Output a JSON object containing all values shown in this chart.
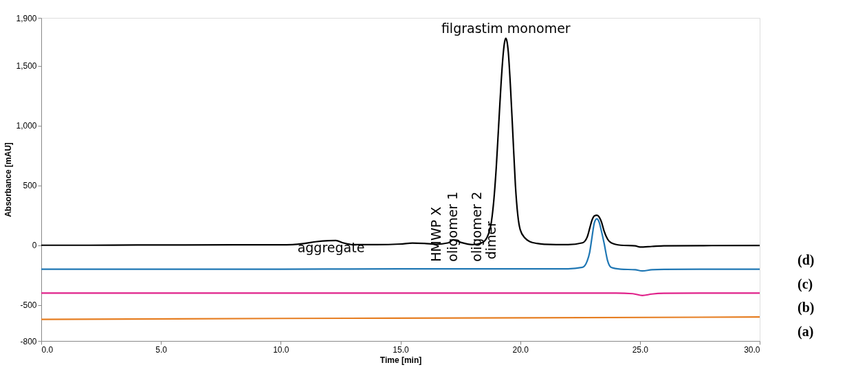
{
  "chart_data": {
    "type": "line",
    "xlabel": "Time [min]",
    "ylabel": "Absorbance [mAU]",
    "xlim": [
      0,
      30
    ],
    "ylim": [
      -800,
      1900
    ],
    "xticks": [
      {
        "value": 0,
        "label": "0.0"
      },
      {
        "value": 5,
        "label": "5.0"
      },
      {
        "value": 10,
        "label": "10.0"
      },
      {
        "value": 15,
        "label": "15.0"
      },
      {
        "value": 20,
        "label": "20.0"
      },
      {
        "value": 25,
        "label": "25.0"
      },
      {
        "value": 30,
        "label": "30.0"
      }
    ],
    "yticks": [
      -800,
      -500,
      0,
      500,
      {
        "value": 1000,
        "label": "1,000"
      },
      {
        "value": 1500,
        "label": "1,500"
      },
      {
        "value": 1900,
        "label": "1,900"
      }
    ],
    "grid": false,
    "legend": false,
    "marker": "none",
    "line_style": "solid",
    "series": [
      {
        "name": "(d)",
        "color": "#000000",
        "x": [
          0,
          2,
          4,
          6,
          8,
          10,
          10.5,
          11,
          11.5,
          12,
          12.3,
          12.6,
          13,
          14,
          15,
          15.5,
          16,
          16.5,
          17,
          17.2,
          17.5,
          18,
          18.4,
          18.6,
          18.8,
          18.9,
          19.0,
          19.1,
          19.2,
          19.3,
          19.35,
          19.4,
          19.45,
          19.5,
          19.6,
          19.7,
          19.8,
          19.9,
          20.0,
          20.2,
          20.4,
          20.7,
          21,
          22,
          22.6,
          22.8,
          22.9,
          23.0,
          23.1,
          23.2,
          23.3,
          23.4,
          23.5,
          23.65,
          23.8,
          24.2,
          24.8,
          25.0,
          25.5,
          26,
          28,
          30
        ],
        "values": [
          0,
          0,
          2,
          2,
          3,
          3,
          5,
          15,
          30,
          38,
          40,
          20,
          5,
          5,
          10,
          18,
          15,
          8,
          20,
          45,
          25,
          5,
          20,
          60,
          200,
          380,
          650,
          1000,
          1350,
          1620,
          1700,
          1730,
          1700,
          1620,
          1300,
          900,
          500,
          250,
          130,
          60,
          30,
          15,
          8,
          5,
          20,
          70,
          140,
          210,
          245,
          250,
          235,
          190,
          120,
          50,
          20,
          0,
          -5,
          -15,
          -10,
          -5,
          -3,
          -2
        ]
      },
      {
        "name": "(c)",
        "color": "#1f77b4",
        "x": [
          0,
          5,
          10,
          15,
          20,
          21,
          22,
          22.6,
          22.8,
          22.9,
          23.0,
          23.1,
          23.2,
          23.3,
          23.4,
          23.5,
          23.65,
          23.8,
          24.2,
          24.8,
          25.1,
          25.5,
          26,
          28,
          30
        ],
        "values": [
          -200,
          -200,
          -200,
          -198,
          -197,
          -197,
          -197,
          -185,
          -130,
          -60,
          70,
          190,
          220,
          190,
          110,
          20,
          -130,
          -185,
          -200,
          -205,
          -215,
          -205,
          -202,
          -200,
          -200
        ]
      },
      {
        "name": "(b)",
        "color": "#e0218a",
        "x": [
          0,
          5,
          10,
          15,
          20,
          24,
          24.7,
          25.1,
          25.5,
          26,
          28,
          30
        ],
        "values": [
          -400,
          -400,
          -400,
          -400,
          -400,
          -400,
          -405,
          -420,
          -408,
          -402,
          -400,
          -400
        ]
      },
      {
        "name": "(a)",
        "color": "#e67e22",
        "x": [
          0,
          10,
          20,
          30
        ],
        "values": [
          -620,
          -612,
          -607,
          -600
        ]
      }
    ],
    "annotations": [
      {
        "text": "aggregate",
        "x": 12.1,
        "y": 40
      },
      {
        "text": "HMWP X",
        "x": 16.5,
        "y": 8
      },
      {
        "text": "oligomer 1",
        "x": 17.2,
        "y": 45
      },
      {
        "text": "oligomer 2",
        "x": 18.2,
        "y": 10
      },
      {
        "text": "dimer",
        "x": 18.8,
        "y": 200
      },
      {
        "text": "filgrastim monomer",
        "x": 19.4,
        "y": 1730
      }
    ]
  }
}
